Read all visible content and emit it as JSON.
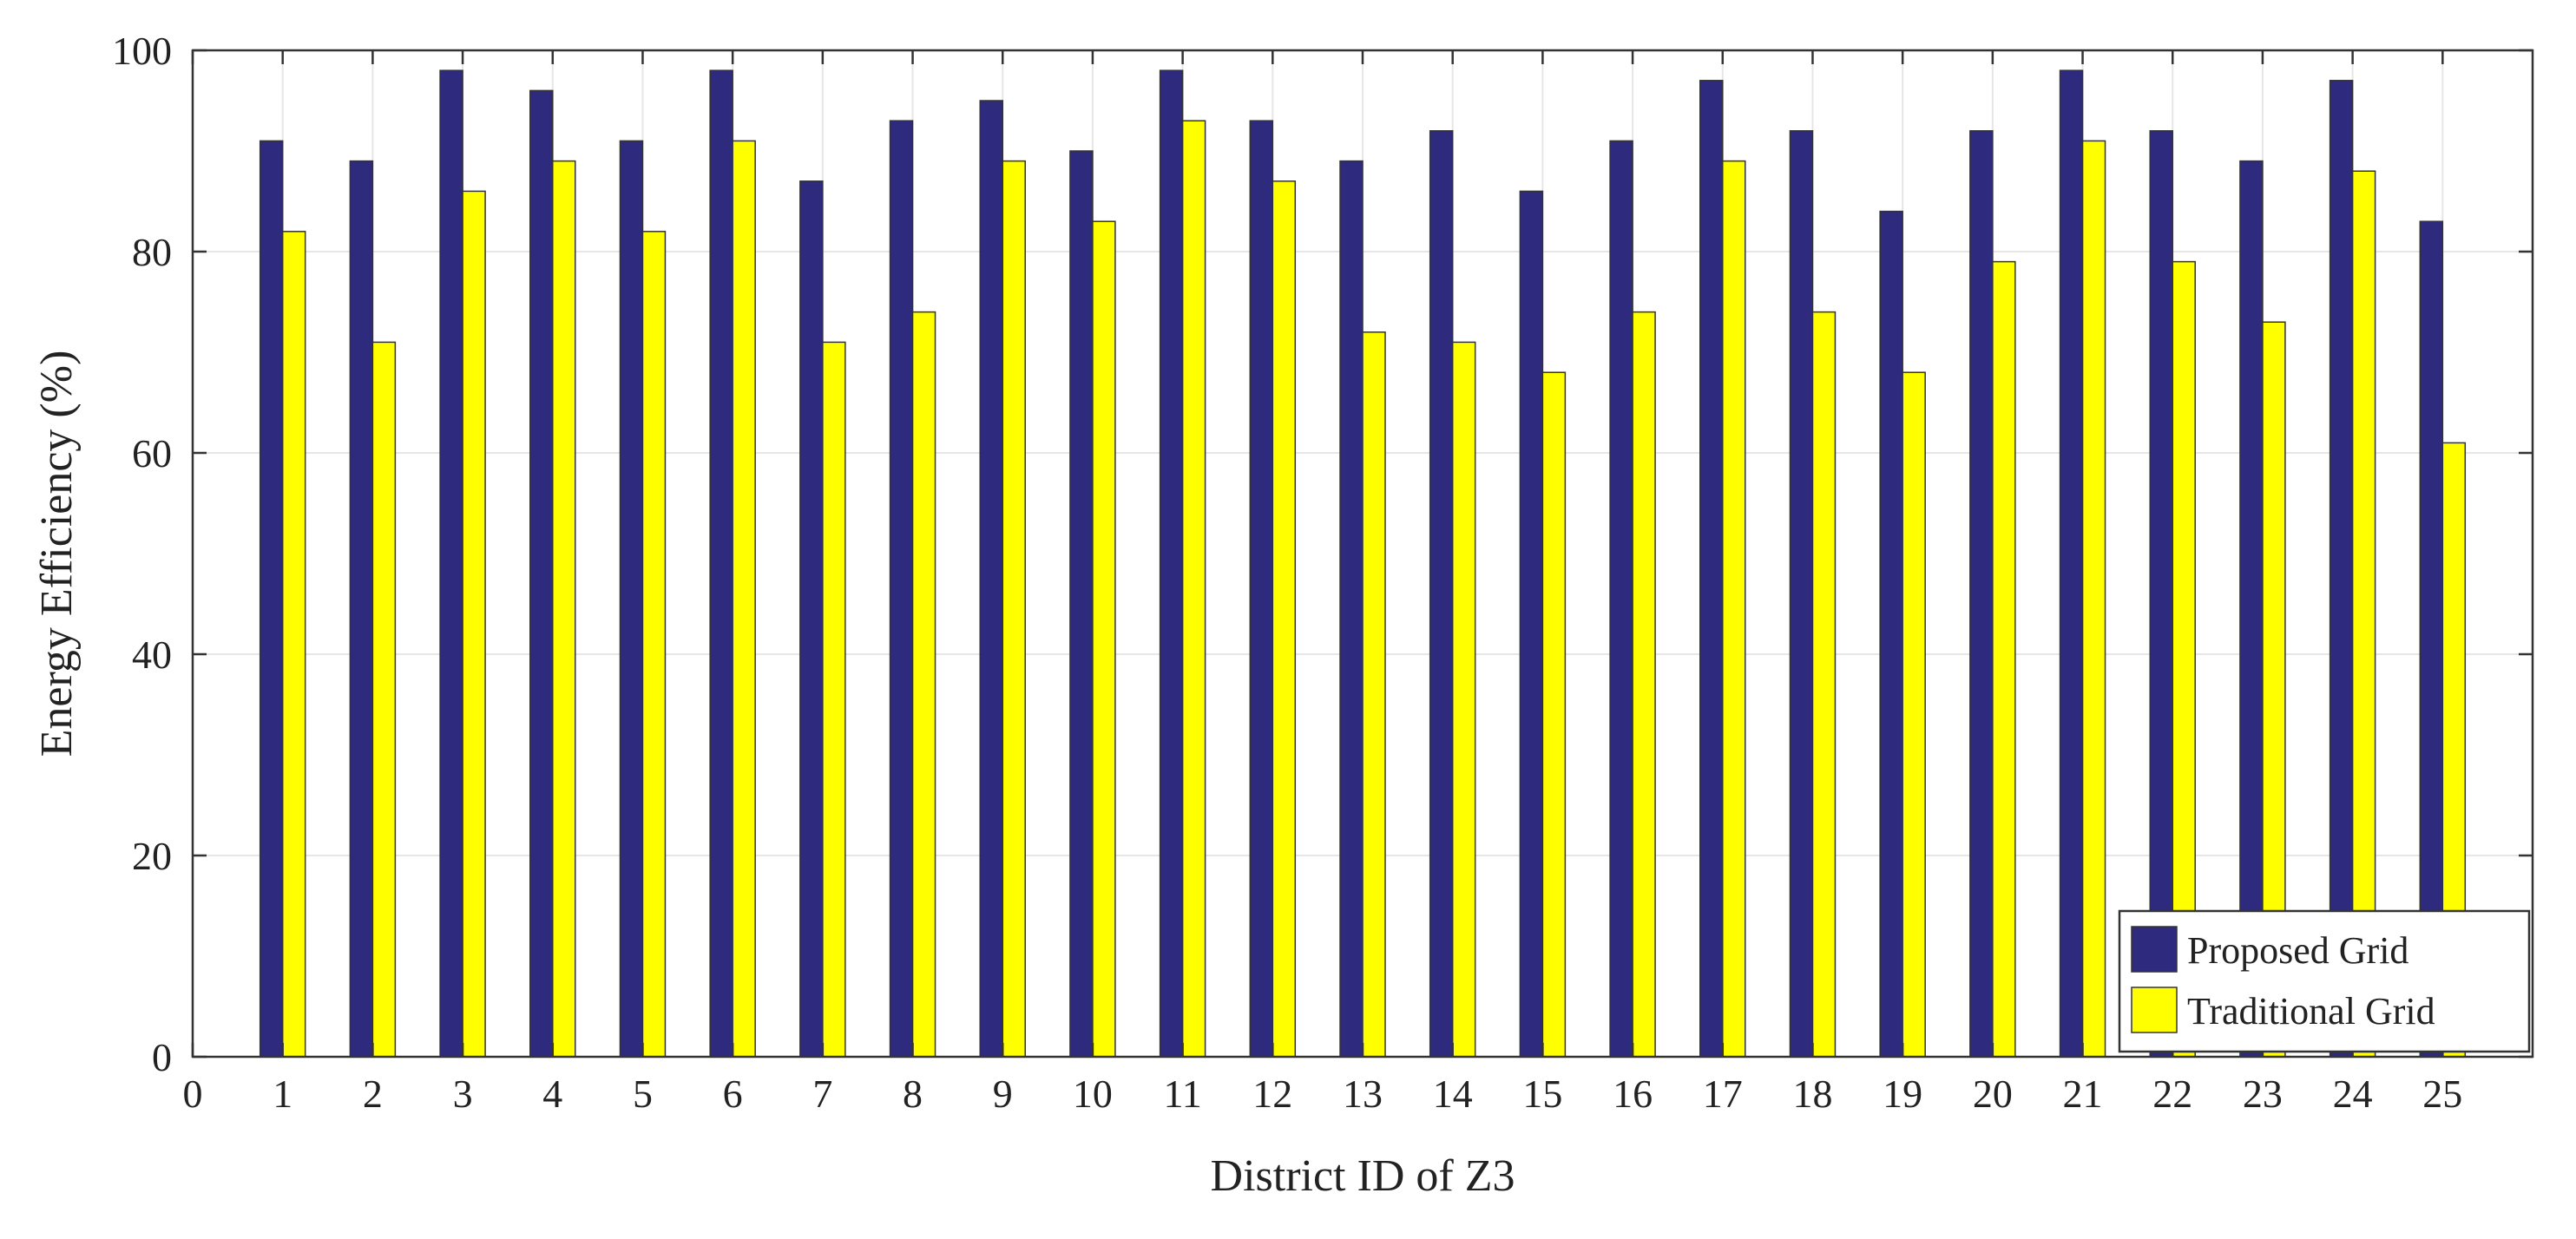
{
  "chart_data": {
    "type": "bar",
    "xlabel": "District ID of Z3",
    "ylabel": "Energy Efficiency (%)",
    "ylim": [
      0,
      100
    ],
    "xlim": [
      0,
      26
    ],
    "yticks": [
      0,
      20,
      40,
      60,
      80,
      100
    ],
    "xticks": [
      "0",
      "1",
      "2",
      "3",
      "4",
      "5",
      "6",
      "7",
      "8",
      "9",
      "10",
      "11",
      "12",
      "13",
      "14",
      "15",
      "16",
      "17",
      "18",
      "19",
      "20",
      "21",
      "22",
      "23",
      "24",
      "25"
    ],
    "categories": [
      1,
      2,
      3,
      4,
      5,
      6,
      7,
      8,
      9,
      10,
      11,
      12,
      13,
      14,
      15,
      16,
      17,
      18,
      19,
      20,
      21,
      22,
      23,
      24,
      25
    ],
    "grid": true,
    "legend_position": "bottom-right",
    "series": [
      {
        "name": "Proposed Grid",
        "color": "#2e2a7e",
        "values": [
          91,
          89,
          98,
          96,
          91,
          98,
          87,
          93,
          95,
          90,
          98,
          93,
          89,
          92,
          86,
          91,
          97,
          92,
          84,
          92,
          98,
          92,
          89,
          97,
          83
        ]
      },
      {
        "name": "Traditional Grid",
        "color": "#ffff00",
        "values": [
          82,
          71,
          86,
          89,
          82,
          91,
          71,
          74,
          89,
          83,
          93,
          87,
          72,
          71,
          68,
          74,
          89,
          74,
          68,
          79,
          91,
          79,
          73,
          88,
          61
        ]
      }
    ]
  }
}
